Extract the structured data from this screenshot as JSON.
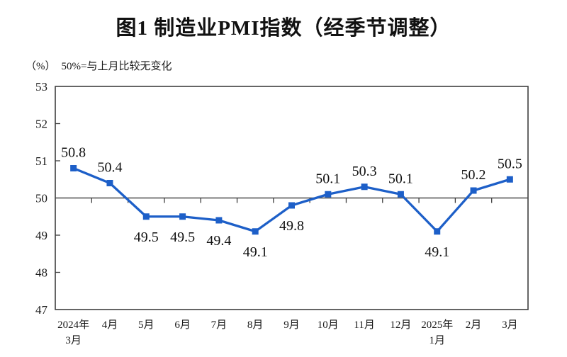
{
  "title": "图1  制造业PMI指数（经季节调整）",
  "subtitle": {
    "unit": "（%）",
    "note": "50%=与上月比较无变化"
  },
  "colors": {
    "line": "#1d5fc8",
    "axis": "#3f3f3f",
    "baseline": "#4a4a4a",
    "text": "#111111"
  },
  "chart_data": {
    "type": "line",
    "title": "图1  制造业PMI指数（经季节调整）",
    "ylabel": "（%）",
    "note": "50%=与上月比较无变化",
    "categories": [
      "2024年\n3月",
      "4月",
      "5月",
      "6月",
      "7月",
      "8月",
      "9月",
      "10月",
      "11月",
      "12月",
      "2025年\n1月",
      "2月",
      "3月"
    ],
    "values": [
      50.8,
      50.4,
      49.5,
      49.5,
      49.4,
      49.1,
      49.8,
      50.1,
      50.3,
      50.1,
      49.1,
      50.2,
      50.5
    ],
    "label_positions": [
      "above",
      "above",
      "below",
      "below",
      "below",
      "below",
      "below",
      "above",
      "above",
      "above",
      "below",
      "above",
      "above"
    ],
    "ylim": [
      47,
      53
    ],
    "yticks": [
      47,
      48,
      49,
      50,
      51,
      52,
      53
    ],
    "baseline": 50,
    "grid": false,
    "legend": "none",
    "marker": "square"
  }
}
